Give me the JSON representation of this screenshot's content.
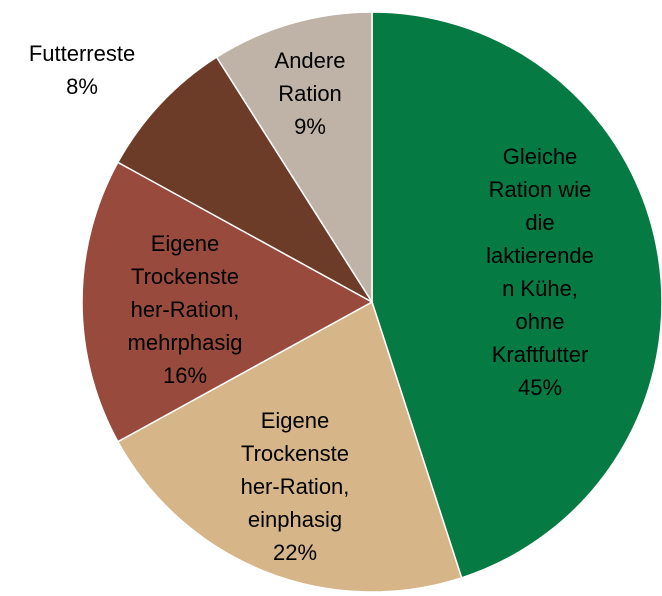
{
  "chart_data": {
    "type": "pie",
    "categories": [
      "Gleiche\nRation wie\ndie\nlaktierende\nn Kühe,\nohne\nKraftfutter",
      "Eigene\nTrockenste\nher-Ration,\neinphasig",
      "Eigene\nTrockenste\nher-Ration,\nmehrphasig",
      "Futterreste",
      "Andere\nRation"
    ],
    "values": [
      45,
      22,
      16,
      8,
      9
    ],
    "value_labels": [
      "45%",
      "22%",
      "16%",
      "8%",
      "9%"
    ],
    "colors": [
      "#067a43",
      "#d6b588",
      "#984a3d",
      "#6d3c29",
      "#bfb3a7"
    ]
  }
}
